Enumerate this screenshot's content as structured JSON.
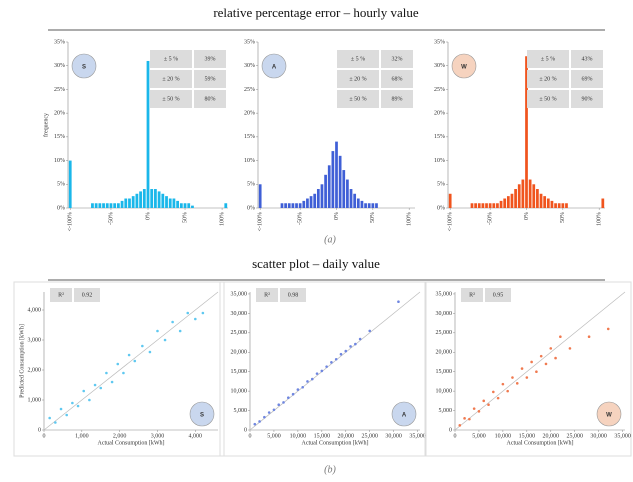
{
  "title_a": "relative percentage error – hourly value",
  "caption_a": "(a)",
  "title_b": "scatter plot – daily value",
  "caption_b": "(b)",
  "chart_data": [
    {
      "type": "bar",
      "badge": "S",
      "color": "#1ab7ea",
      "ylabel": "frequency",
      "x": [
        -105,
        -100,
        -95,
        -90,
        -85,
        -80,
        -75,
        -70,
        -65,
        -60,
        -55,
        -50,
        -45,
        -40,
        -35,
        -30,
        -25,
        -20,
        -15,
        -10,
        -5,
        0,
        5,
        10,
        15,
        20,
        25,
        30,
        35,
        40,
        45,
        50,
        55,
        60,
        65,
        70,
        75,
        80,
        85,
        90,
        95,
        100,
        105
      ],
      "values": [
        10,
        0,
        0,
        0,
        0,
        0,
        1,
        1,
        1,
        1,
        1,
        1,
        1,
        1,
        1.5,
        2,
        2,
        2.5,
        3,
        3.5,
        4,
        31,
        4,
        4,
        3.5,
        3,
        2.5,
        2,
        2,
        1.5,
        1,
        1,
        1,
        0.5,
        0,
        0,
        0,
        0,
        0,
        0,
        0,
        0,
        1
      ],
      "table": [
        [
          "± 5 %",
          "39%"
        ],
        [
          "± 20 %",
          "59%"
        ],
        [
          "± 50 %",
          "80%"
        ]
      ],
      "xlim": [
        -108,
        108
      ],
      "xticks": [
        {
          "value": -105,
          "label": "<-100%"
        },
        {
          "value": -50,
          "label": "-50%"
        },
        {
          "value": 0,
          "label": "0%"
        },
        {
          "value": 50,
          "label": "50%"
        },
        {
          "value": 100,
          "label": "100%"
        }
      ],
      "ylim": [
        0,
        35
      ],
      "yticks": [
        {
          "value": 0,
          "label": "0%"
        },
        {
          "value": 5,
          "label": "5%"
        },
        {
          "value": 10,
          "label": "10%"
        },
        {
          "value": 15,
          "label": "15%"
        },
        {
          "value": 20,
          "label": "20%"
        },
        {
          "value": 25,
          "label": "25%"
        },
        {
          "value": 30,
          "label": "30%"
        },
        {
          "value": 35,
          "label": "35%"
        }
      ]
    },
    {
      "type": "bar",
      "badge": "A",
      "color": "#3f5fd6",
      "x": [
        -105,
        -100,
        -95,
        -90,
        -85,
        -80,
        -75,
        -70,
        -65,
        -60,
        -55,
        -50,
        -45,
        -40,
        -35,
        -30,
        -25,
        -20,
        -15,
        -10,
        -5,
        0,
        5,
        10,
        15,
        20,
        25,
        30,
        35,
        40,
        45,
        50,
        55,
        60,
        65,
        70,
        75,
        80,
        85,
        90,
        95,
        100,
        105
      ],
      "values": [
        5,
        0,
        0,
        0,
        0,
        0,
        1,
        1,
        1,
        1,
        1,
        1,
        1.5,
        2,
        2.5,
        3,
        4,
        5,
        7,
        9,
        12,
        14,
        11,
        8,
        6,
        4,
        3,
        2,
        1.5,
        1,
        1,
        1,
        1,
        0,
        0,
        0,
        0,
        0,
        0,
        0,
        0,
        0,
        0
      ],
      "table": [
        [
          "± 5 %",
          "32%"
        ],
        [
          "± 20 %",
          "68%"
        ],
        [
          "± 50 %",
          "89%"
        ]
      ],
      "xlim": [
        -108,
        108
      ],
      "xticks": [
        {
          "value": -105,
          "label": "<-100%"
        },
        {
          "value": -50,
          "label": "-50%"
        },
        {
          "value": 0,
          "label": "0%"
        },
        {
          "value": 50,
          "label": "50%"
        },
        {
          "value": 100,
          "label": "100%"
        }
      ],
      "ylim": [
        0,
        35
      ],
      "yticks": [
        {
          "value": 0,
          "label": "0%"
        },
        {
          "value": 5,
          "label": "5%"
        },
        {
          "value": 10,
          "label": "10%"
        },
        {
          "value": 15,
          "label": "15%"
        },
        {
          "value": 20,
          "label": "20%"
        },
        {
          "value": 25,
          "label": "25%"
        },
        {
          "value": 30,
          "label": "30%"
        },
        {
          "value": 35,
          "label": "35%"
        }
      ]
    },
    {
      "type": "bar",
      "badge": "W",
      "color": "#f0541e",
      "x": [
        -105,
        -100,
        -95,
        -90,
        -85,
        -80,
        -75,
        -70,
        -65,
        -60,
        -55,
        -50,
        -45,
        -40,
        -35,
        -30,
        -25,
        -20,
        -15,
        -10,
        -5,
        0,
        5,
        10,
        15,
        20,
        25,
        30,
        35,
        40,
        45,
        50,
        55,
        60,
        65,
        70,
        75,
        80,
        85,
        90,
        95,
        100,
        105
      ],
      "values": [
        3,
        0,
        0,
        0,
        0,
        0,
        1,
        1,
        1,
        1,
        1,
        1,
        1,
        1,
        1.5,
        2,
        2.5,
        3,
        4,
        5,
        6,
        32,
        6,
        5,
        4,
        3,
        2.5,
        2,
        1.5,
        1,
        1,
        1,
        1,
        0,
        0,
        0,
        0,
        0,
        0,
        0,
        0,
        0,
        2
      ],
      "table": [
        [
          "± 5 %",
          "43%"
        ],
        [
          "± 20 %",
          "69%"
        ],
        [
          "± 50 %",
          "90%"
        ]
      ],
      "xlim": [
        -108,
        108
      ],
      "xticks": [
        {
          "value": -105,
          "label": "<-100%"
        },
        {
          "value": -50,
          "label": "-50%"
        },
        {
          "value": 0,
          "label": "0%"
        },
        {
          "value": 50,
          "label": "50%"
        },
        {
          "value": 100,
          "label": "100%"
        }
      ],
      "ylim": [
        0,
        35
      ],
      "yticks": [
        {
          "value": 0,
          "label": "0%"
        },
        {
          "value": 5,
          "label": "5%"
        },
        {
          "value": 10,
          "label": "10%"
        },
        {
          "value": 15,
          "label": "15%"
        },
        {
          "value": 20,
          "label": "20%"
        },
        {
          "value": 25,
          "label": "25%"
        },
        {
          "value": 30,
          "label": "30%"
        },
        {
          "value": 35,
          "label": "35%"
        }
      ]
    },
    {
      "type": "scatter",
      "badge": "S",
      "color": "#5fc8f0",
      "r2_label": "R²",
      "r2_value": "0.92",
      "xlabel": "Actual Consumption [kWh]",
      "ylabel": "Predicted Consumption [kWh]",
      "x": [
        150,
        300,
        450,
        600,
        750,
        900,
        1050,
        1200,
        1350,
        1500,
        1650,
        1800,
        1950,
        2100,
        2250,
        2400,
        2600,
        2800,
        3000,
        3200,
        3400,
        3600,
        3800,
        4000,
        4200
      ],
      "values": [
        400,
        250,
        700,
        500,
        900,
        800,
        1300,
        1000,
        1500,
        1400,
        1900,
        1600,
        2200,
        1900,
        2500,
        2300,
        2800,
        2600,
        3300,
        3000,
        3600,
        3300,
        3900,
        3700,
        3900
      ],
      "xlim": [
        0,
        4600
      ],
      "xticks": [
        0,
        {
          "value": 1000,
          "label": "1,000"
        },
        {
          "value": 2000,
          "label": "2,000"
        },
        {
          "value": 3000,
          "label": "3,000"
        },
        {
          "value": 4000,
          "label": "4,000"
        }
      ],
      "ylim": [
        0,
        4600
      ],
      "yticks": [
        0,
        {
          "value": 1000,
          "label": "1,000"
        },
        {
          "value": 2000,
          "label": "2,000"
        },
        {
          "value": 3000,
          "label": "3,000"
        },
        {
          "value": 4000,
          "label": "4,000"
        }
      ]
    },
    {
      "type": "scatter",
      "badge": "A",
      "color": "#6f86e0",
      "r2_label": "R²",
      "r2_value": "0.98",
      "xlabel": "Actual Consumption [kWh]",
      "x": [
        1000,
        2000,
        3000,
        4000,
        5000,
        6000,
        7000,
        8000,
        9000,
        10000,
        11000,
        12000,
        13000,
        14000,
        15000,
        16000,
        17000,
        18000,
        19000,
        20000,
        21000,
        22000,
        23000,
        25000,
        31000
      ],
      "values": [
        1500,
        2200,
        3300,
        4500,
        5200,
        6500,
        7100,
        8300,
        9200,
        10400,
        11000,
        12500,
        13100,
        14500,
        15200,
        16300,
        17400,
        18200,
        19500,
        20300,
        21500,
        22100,
        23400,
        25500,
        33000
      ],
      "xlim": [
        0,
        35500
      ],
      "xticks": [
        0,
        {
          "value": 5000,
          "label": "5,000"
        },
        {
          "value": 10000,
          "label": "10,000"
        },
        {
          "value": 15000,
          "label": "15,000"
        },
        {
          "value": 20000,
          "label": "20,000"
        },
        {
          "value": 25000,
          "label": "25,000"
        },
        {
          "value": 30000,
          "label": "30,000"
        },
        {
          "value": 35000,
          "label": "35,000"
        }
      ],
      "ylim": [
        0,
        35500
      ],
      "yticks": [
        0,
        {
          "value": 5000,
          "label": "5,000"
        },
        {
          "value": 10000,
          "label": "10,000"
        },
        {
          "value": 15000,
          "label": "15,000"
        },
        {
          "value": 20000,
          "label": "20,000"
        },
        {
          "value": 25000,
          "label": "25,000"
        },
        {
          "value": 30000,
          "label": "30,000"
        },
        {
          "value": 35000,
          "label": "35,000"
        }
      ]
    },
    {
      "type": "scatter",
      "badge": "W",
      "color": "#f07a50",
      "r2_label": "R²",
      "r2_value": "0.95",
      "xlabel": "Actual Consumption [kWh]",
      "x": [
        1000,
        2000,
        3000,
        4000,
        5000,
        6000,
        7000,
        8000,
        9000,
        10000,
        11000,
        12000,
        13000,
        14000,
        15000,
        16000,
        17000,
        18000,
        19000,
        20000,
        21000,
        22000,
        24000,
        28000,
        32000
      ],
      "values": [
        1200,
        3000,
        2800,
        5500,
        4800,
        7500,
        6500,
        9800,
        8200,
        11800,
        10000,
        13500,
        12000,
        15800,
        13500,
        17500,
        15000,
        19000,
        17000,
        21000,
        18500,
        24000,
        21000,
        24000,
        26000
      ],
      "xlim": [
        0,
        35500
      ],
      "xticks": [
        0,
        {
          "value": 5000,
          "label": "5,000"
        },
        {
          "value": 10000,
          "label": "10,000"
        },
        {
          "value": 15000,
          "label": "15,000"
        },
        {
          "value": 20000,
          "label": "20,000"
        },
        {
          "value": 25000,
          "label": "25,000"
        },
        {
          "value": 30000,
          "label": "30,000"
        },
        {
          "value": 35000,
          "label": "35,000"
        }
      ],
      "ylim": [
        0,
        35500
      ],
      "yticks": [
        0,
        {
          "value": 5000,
          "label": "5,000"
        },
        {
          "value": 10000,
          "label": "10,000"
        },
        {
          "value": 15000,
          "label": "15,000"
        },
        {
          "value": 20000,
          "label": "20,000"
        },
        {
          "value": 25000,
          "label": "25,000"
        },
        {
          "value": 30000,
          "label": "30,000"
        },
        {
          "value": 35000,
          "label": "35,000"
        }
      ]
    }
  ]
}
